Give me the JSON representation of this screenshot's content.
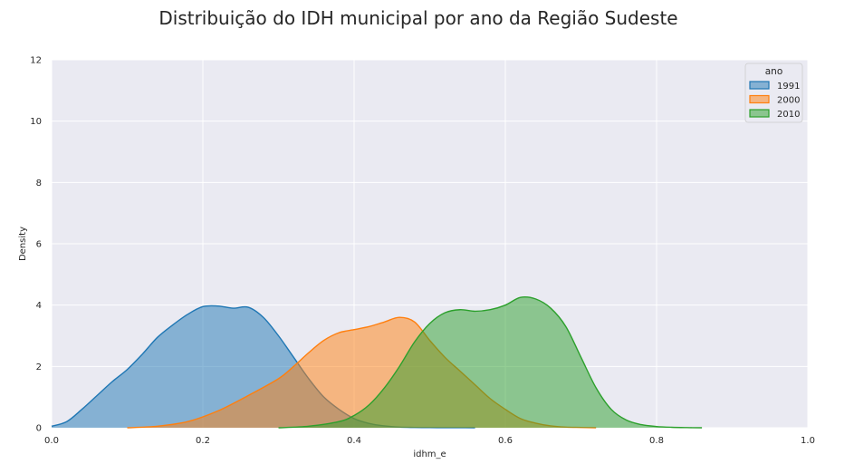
{
  "chart_data": {
    "type": "area",
    "title": "Distribuição do IDH municipal por ano da Região Sudeste",
    "xlabel": "idhm_e",
    "ylabel": "Density",
    "xlim": [
      0.0,
      1.0
    ],
    "ylim": [
      0,
      12
    ],
    "xticks": [
      "0.0",
      "0.2",
      "0.4",
      "0.6",
      "0.8",
      "1.0"
    ],
    "yticks": [
      "0",
      "2",
      "4",
      "6",
      "8",
      "10",
      "12"
    ],
    "grid": true,
    "legend": {
      "title": "ano",
      "position": "top-right"
    },
    "series": [
      {
        "name": "1991",
        "color": "#1f77b4",
        "x": [
          0.0,
          0.02,
          0.04,
          0.06,
          0.08,
          0.1,
          0.12,
          0.14,
          0.16,
          0.18,
          0.2,
          0.22,
          0.24,
          0.26,
          0.28,
          0.3,
          0.32,
          0.34,
          0.36,
          0.38,
          0.4,
          0.42,
          0.44,
          0.46,
          0.48,
          0.5,
          0.52,
          0.54,
          0.56
        ],
        "y": [
          0.05,
          0.2,
          0.6,
          1.05,
          1.5,
          1.9,
          2.4,
          2.95,
          3.35,
          3.7,
          3.95,
          3.97,
          3.9,
          3.93,
          3.6,
          3.0,
          2.3,
          1.6,
          1.0,
          0.6,
          0.3,
          0.14,
          0.06,
          0.02,
          0.01,
          0.005,
          0.002,
          0.001,
          0.0
        ]
      },
      {
        "name": "2000",
        "color": "#ff7f0e",
        "x": [
          0.1,
          0.14,
          0.18,
          0.22,
          0.26,
          0.3,
          0.32,
          0.34,
          0.36,
          0.38,
          0.4,
          0.42,
          0.44,
          0.46,
          0.48,
          0.5,
          0.52,
          0.54,
          0.56,
          0.58,
          0.6,
          0.62,
          0.64,
          0.66,
          0.68,
          0.7,
          0.72
        ],
        "y": [
          0.0,
          0.05,
          0.2,
          0.55,
          1.05,
          1.6,
          2.0,
          2.45,
          2.85,
          3.1,
          3.2,
          3.3,
          3.45,
          3.6,
          3.45,
          2.85,
          2.3,
          1.85,
          1.4,
          0.95,
          0.6,
          0.3,
          0.15,
          0.06,
          0.02,
          0.01,
          0.0
        ]
      },
      {
        "name": "2010",
        "color": "#2ca02c",
        "x": [
          0.3,
          0.34,
          0.38,
          0.4,
          0.42,
          0.44,
          0.46,
          0.48,
          0.5,
          0.52,
          0.54,
          0.56,
          0.58,
          0.6,
          0.62,
          0.64,
          0.66,
          0.68,
          0.7,
          0.72,
          0.74,
          0.76,
          0.78,
          0.8,
          0.82,
          0.84,
          0.86
        ],
        "y": [
          0.0,
          0.05,
          0.2,
          0.4,
          0.75,
          1.3,
          2.0,
          2.8,
          3.4,
          3.75,
          3.85,
          3.8,
          3.85,
          4.0,
          4.25,
          4.2,
          3.9,
          3.3,
          2.3,
          1.3,
          0.6,
          0.25,
          0.1,
          0.04,
          0.015,
          0.005,
          0.0
        ]
      }
    ]
  }
}
